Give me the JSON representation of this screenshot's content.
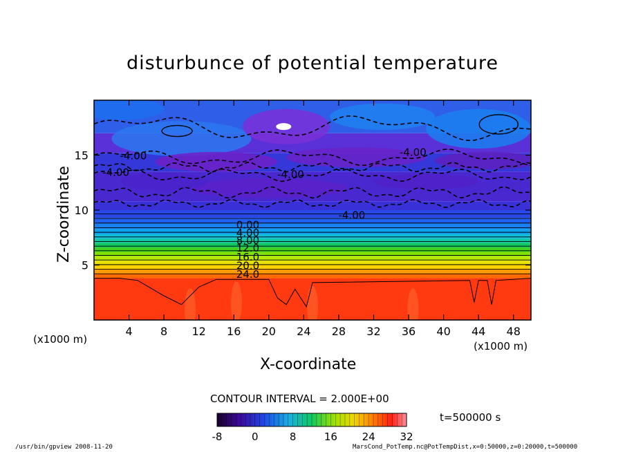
{
  "chart_data": {
    "type": "heatmap",
    "title": "disturbunce of potential temperature",
    "xlabel": "X-coordinate",
    "ylabel": "Z-coordinate",
    "x_unit": "(x1000 m)",
    "y_unit": "(x1000 m)",
    "x_ticks": [
      4,
      8,
      12,
      16,
      20,
      24,
      28,
      32,
      36,
      40,
      44,
      48
    ],
    "y_ticks": [
      5,
      10,
      15
    ],
    "xlim": [
      0,
      50
    ],
    "ylim": [
      0,
      20
    ],
    "contour_interval_label": "CONTOUR INTERVAL = 2.000E+00",
    "contour_labels": [
      "0.00",
      "4.00",
      "8.00",
      "12.0",
      "16.0",
      "20.0",
      "24.0",
      "-4.00",
      "-4.00",
      "-4.00",
      "-4.00",
      "-4.00"
    ],
    "colorbar": {
      "range": [
        -8,
        32
      ],
      "ticks": [
        -8,
        0,
        8,
        16,
        24,
        32
      ]
    },
    "time_label": "t=500000 s"
  },
  "footer": {
    "left": "/usr/bin/gpview  2008-11-20",
    "right": "MarsCond_PotTemp.nc@PotTempDist,x=0:50000,z=0:20000,t=500000"
  },
  "colors": {
    "warm": "#ff3a10",
    "upper_blue": "#2f5fe8",
    "upper_violet": "#6a2bd0"
  }
}
